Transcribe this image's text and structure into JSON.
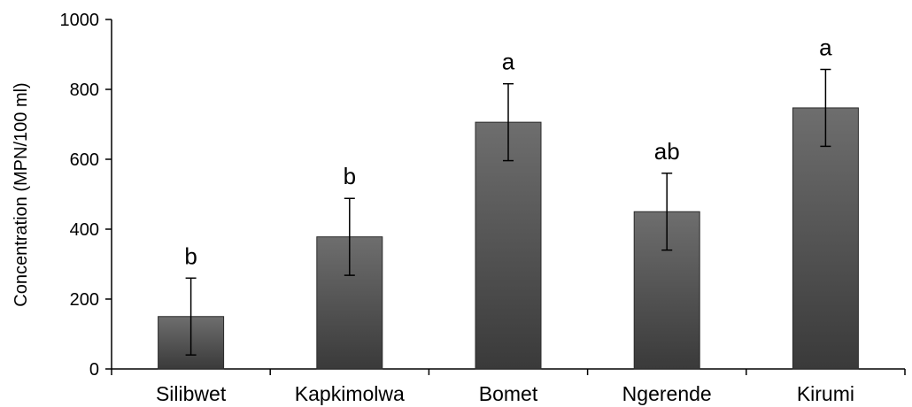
{
  "chart_data": {
    "type": "bar",
    "title": "",
    "xlabel": "",
    "ylabel": "Concentration (MPN/100 ml)",
    "ylim": [
      0,
      1000
    ],
    "yticks": [
      0,
      200,
      400,
      600,
      800,
      1000
    ],
    "grid": false,
    "legend": "none",
    "categories": [
      "Silibwet",
      "Kapkimolwa",
      "Bomet",
      "Ngerende",
      "Kirumi"
    ],
    "values": [
      150,
      378,
      706,
      450,
      747
    ],
    "error": [
      110,
      110,
      110,
      110,
      110
    ],
    "significance_labels": [
      "b",
      "b",
      "a",
      "ab",
      "a"
    ],
    "colors": {
      "bar_top": "#6e6e6e",
      "bar_bottom": "#3a3a3a",
      "bar_stroke": "#2a2a2a",
      "axis": "#000000"
    }
  }
}
